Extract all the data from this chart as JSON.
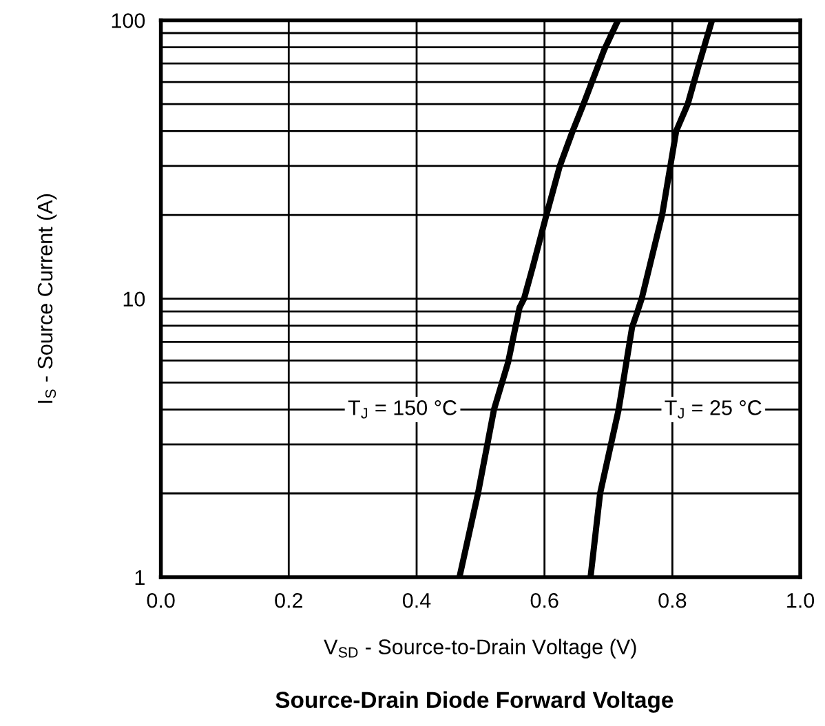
{
  "chart_data": {
    "type": "line",
    "title": "Source-Drain Diode Forward Voltage",
    "xlabel": "V$_{SD}$ - Source-to-Drain Voltage (V)",
    "ylabel": "I$_{S}$ - Source Current (A)",
    "series": [
      {
        "color": "#000000",
        "x": [
          0.467,
          0.496,
          0.521,
          0.543,
          0.561,
          0.568,
          0.582,
          0.603,
          0.624,
          0.644,
          0.661,
          0.693,
          0.715
        ],
        "values": [
          1,
          2,
          4,
          5.9,
          9.3,
          10,
          13.1,
          20,
          30,
          40,
          50,
          78,
          100
        ]
      },
      {
        "color": "#000000",
        "x": [
          0.672,
          0.687,
          0.716,
          0.737,
          0.744,
          0.752,
          0.784,
          0.806,
          0.824,
          0.842,
          0.862
        ],
        "values": [
          1,
          2,
          4,
          7.9,
          8.8,
          10,
          20,
          40,
          50,
          70,
          100
        ]
      }
    ],
    "annotations": [
      "T$_{J}$ = 150 °C",
      "T$_{J}$ = 25 °C"
    ],
    "log": "y",
    "xlim": [
      0,
      1
    ],
    "xticks": [
      {
        "value": 0,
        "label": "0.0"
      },
      0.2,
      0.4,
      0.6,
      0.8,
      {
        "value": 1,
        "label": "1.0"
      }
    ],
    "ylim": [
      1,
      100
    ],
    "yticks": [
      1,
      {
        "value": 2,
        "label": null
      },
      {
        "value": 3,
        "label": null
      },
      {
        "value": 4,
        "label": null
      },
      {
        "value": 5,
        "label": null
      },
      {
        "value": 6,
        "label": null
      },
      {
        "value": 7,
        "label": null
      },
      {
        "value": 8,
        "label": null
      },
      {
        "value": 9,
        "label": null
      },
      10,
      {
        "value": 20,
        "label": null
      },
      {
        "value": 30,
        "label": null
      },
      {
        "value": 40,
        "label": null
      },
      {
        "value": 50,
        "label": null
      },
      {
        "value": 60,
        "label": null
      },
      {
        "value": 70,
        "label": null
      },
      {
        "value": 80,
        "label": null
      },
      {
        "value": 90,
        "label": null
      },
      100
    ],
    "grid": true,
    "legend": false,
    "marker": "none",
    "line_style": "solid"
  }
}
